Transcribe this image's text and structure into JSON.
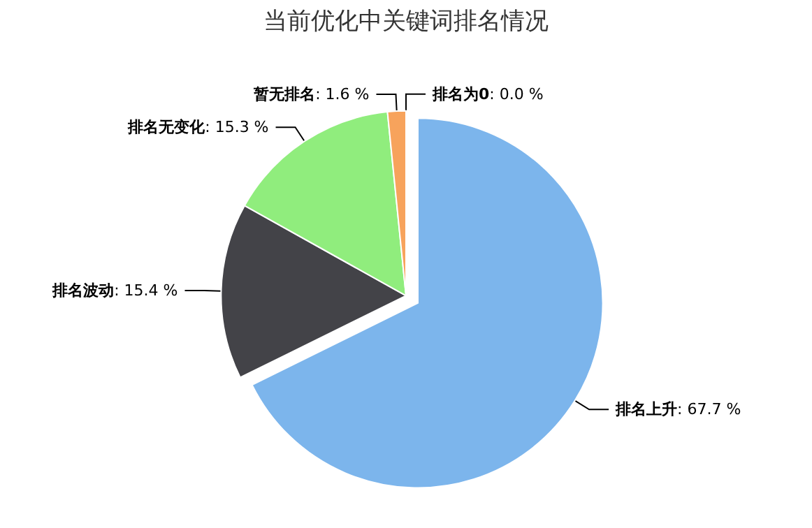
{
  "chart_data": {
    "type": "pie",
    "title": "当前优化中关键词排名情况",
    "categories": [
      "排名上升",
      "排名波动",
      "排名无变化",
      "暂无排名",
      "排名为0"
    ],
    "values": [
      67.7,
      15.4,
      15.3,
      1.6,
      0.0
    ],
    "value_labels": [
      ": 67.7 %",
      ": 15.4 %",
      ": 15.3 %",
      ": 1.6 %",
      ": 0.0 %"
    ],
    "colors": [
      "#7cb5ec",
      "#434348",
      "#90ed7d",
      "#f7a35c",
      "#8085e9"
    ]
  }
}
